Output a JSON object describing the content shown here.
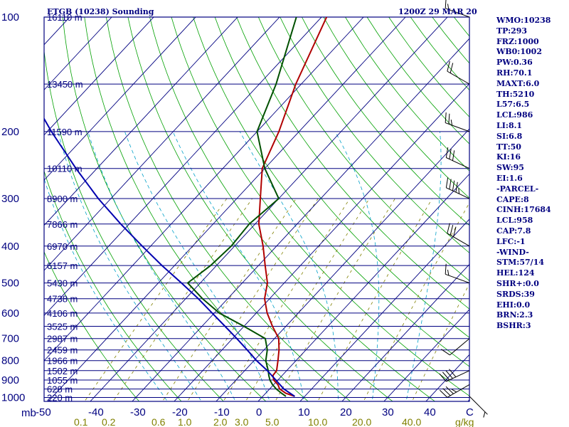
{
  "chart_data": {
    "type": "line",
    "title": "ETGB (10238) Sounding",
    "time": "1200Z 29 MAR 20",
    "pressure_axis_unit": "mb",
    "mixing_ratio_unit": "g/kg",
    "xlim": [
      -50,
      50
    ],
    "ylim": [
      1000,
      100
    ],
    "pressure_levels": [
      100,
      200,
      300,
      400,
      500,
      600,
      700,
      800,
      900,
      1000
    ],
    "temperature_ticks": [
      "-50",
      "-40",
      "-30",
      "-20",
      "-10",
      "0",
      "10",
      "20",
      "30",
      "40",
      "C"
    ],
    "mixing_ratio_labels": [
      "0.1",
      "0.2",
      "0.6",
      "1.0",
      "2.0",
      "3.0",
      "5.0",
      "10.0",
      "20.0",
      "40.0",
      "g/kg"
    ],
    "heights": [
      {
        "pressure": 100,
        "label": "16110 m"
      },
      {
        "pressure": 150,
        "label": "13450 m"
      },
      {
        "pressure": 200,
        "label": "11590 m"
      },
      {
        "pressure": 250,
        "label": "10110 m"
      },
      {
        "pressure": 300,
        "label": "8900 m"
      },
      {
        "pressure": 350,
        "label": "7866 m"
      },
      {
        "pressure": 400,
        "label": "6970 m"
      },
      {
        "pressure": 450,
        "label": "6157 m"
      },
      {
        "pressure": 500,
        "label": "5430 m"
      },
      {
        "pressure": 550,
        "label": "4738 m"
      },
      {
        "pressure": 600,
        "label": "4106 m"
      },
      {
        "pressure": 650,
        "label": "3525 m"
      },
      {
        "pressure": 700,
        "label": "2987 m"
      },
      {
        "pressure": 750,
        "label": "2459 m"
      },
      {
        "pressure": 800,
        "label": "1966 m"
      },
      {
        "pressure": 850,
        "label": "1502 m"
      },
      {
        "pressure": 900,
        "label": "1055 m"
      },
      {
        "pressure": 950,
        "label": "628 m"
      },
      {
        "pressure": 1000,
        "label": "220 m"
      }
    ],
    "series": [
      {
        "pressure": [
          993,
          975,
          950,
          925,
          900,
          875,
          850,
          800,
          750,
          700,
          650,
          600,
          550,
          500,
          450,
          400,
          350,
          300,
          250,
          200,
          150,
          100
        ],
        "values": [
          7.6,
          4.8,
          2.4,
          1.0,
          -1.0,
          -2.2,
          -2.4,
          -4.3,
          -6.4,
          -9.0,
          -13.2,
          -17.4,
          -21.2,
          -24.0,
          -28.4,
          -33.2,
          -39.1,
          -44.4,
          -50.6,
          -54.8,
          -61.3,
          -68.8
        ]
      },
      {
        "pressure": [
          993,
          975,
          950,
          925,
          900,
          875,
          850,
          800,
          750,
          700,
          650,
          600,
          550,
          500,
          450,
          400,
          350,
          300,
          250,
          200,
          150,
          100
        ],
        "values": [
          5.5,
          3.8,
          1.6,
          -0.3,
          -1.9,
          -3.2,
          -4.4,
          -7.2,
          -9.2,
          -12.2,
          -20.0,
          -28.8,
          -36.0,
          -43.0,
          -41.4,
          -40.8,
          -41.4,
          -40.0,
          -50.0,
          -60.0,
          -66.0,
          -76.0
        ]
      },
      {
        "pressure": [
          993,
          950,
          900,
          850,
          800,
          750,
          700,
          650,
          600,
          550,
          500,
          450,
          400,
          350,
          300,
          250,
          200,
          150,
          110
        ],
        "values": [
          7.6,
          3.4,
          -0.5,
          -4.6,
          -9.4,
          -14.0,
          -19.0,
          -24.5,
          -30.5,
          -37.0,
          -44.5,
          -53.0,
          -62.0,
          -72.0,
          -83.0,
          -95.0,
          -109.0,
          -126.0,
          -141.0
        ]
      }
    ],
    "wind_barbs": [
      {
        "pressure": 993,
        "dir": 135,
        "spd": 5
      },
      {
        "pressure": 925,
        "dir": 240,
        "spd": 35
      },
      {
        "pressure": 850,
        "dir": 245,
        "spd": 40
      },
      {
        "pressure": 700,
        "dir": 230,
        "spd": 10
      },
      {
        "pressure": 500,
        "dir": 290,
        "spd": 15
      },
      {
        "pressure": 400,
        "dir": 300,
        "spd": 30
      },
      {
        "pressure": 300,
        "dir": 295,
        "spd": 45
      },
      {
        "pressure": 250,
        "dir": 295,
        "spd": 30
      },
      {
        "pressure": 200,
        "dir": 290,
        "spd": 25
      },
      {
        "pressure": 150,
        "dir": 300,
        "spd": 20
      },
      {
        "pressure": 100,
        "dir": 290,
        "spd": 15
      }
    ]
  },
  "indices": [
    "WMO:10238",
    "TP:293",
    "FRZ:1000",
    "WB0:1002",
    "PW:0.36",
    "RH:70.1",
    "MAXT:6.0",
    "TH:5210",
    "L57:6.5",
    "LCL:986",
    "LI:8.1",
    "SI:6.8",
    "TT:50",
    "KI:16",
    "SW:95",
    "EI:1.6",
    "-PARCEL-",
    "CAPE:8",
    "CINH:17684",
    "LCL:958",
    "CAP:7.8",
    "LFC:-1",
    "-WIND-",
    "STM:57/14",
    "HEL:124",
    "SHR+:0.0",
    "SRDS:39",
    "EHI:0.0",
    "BRN:2.3",
    "BSHR:3"
  ],
  "colors": {
    "frame": "#000080",
    "isobar": "#000080",
    "isotherm": "#000080",
    "dry_adiabat": "#00a000",
    "moist_adiabat": "#00a0c8",
    "mixing_ratio": "#808000",
    "temperature": "#b00000",
    "dewpoint": "#005000",
    "parcel": "#0000b0",
    "barb": "#000000"
  }
}
